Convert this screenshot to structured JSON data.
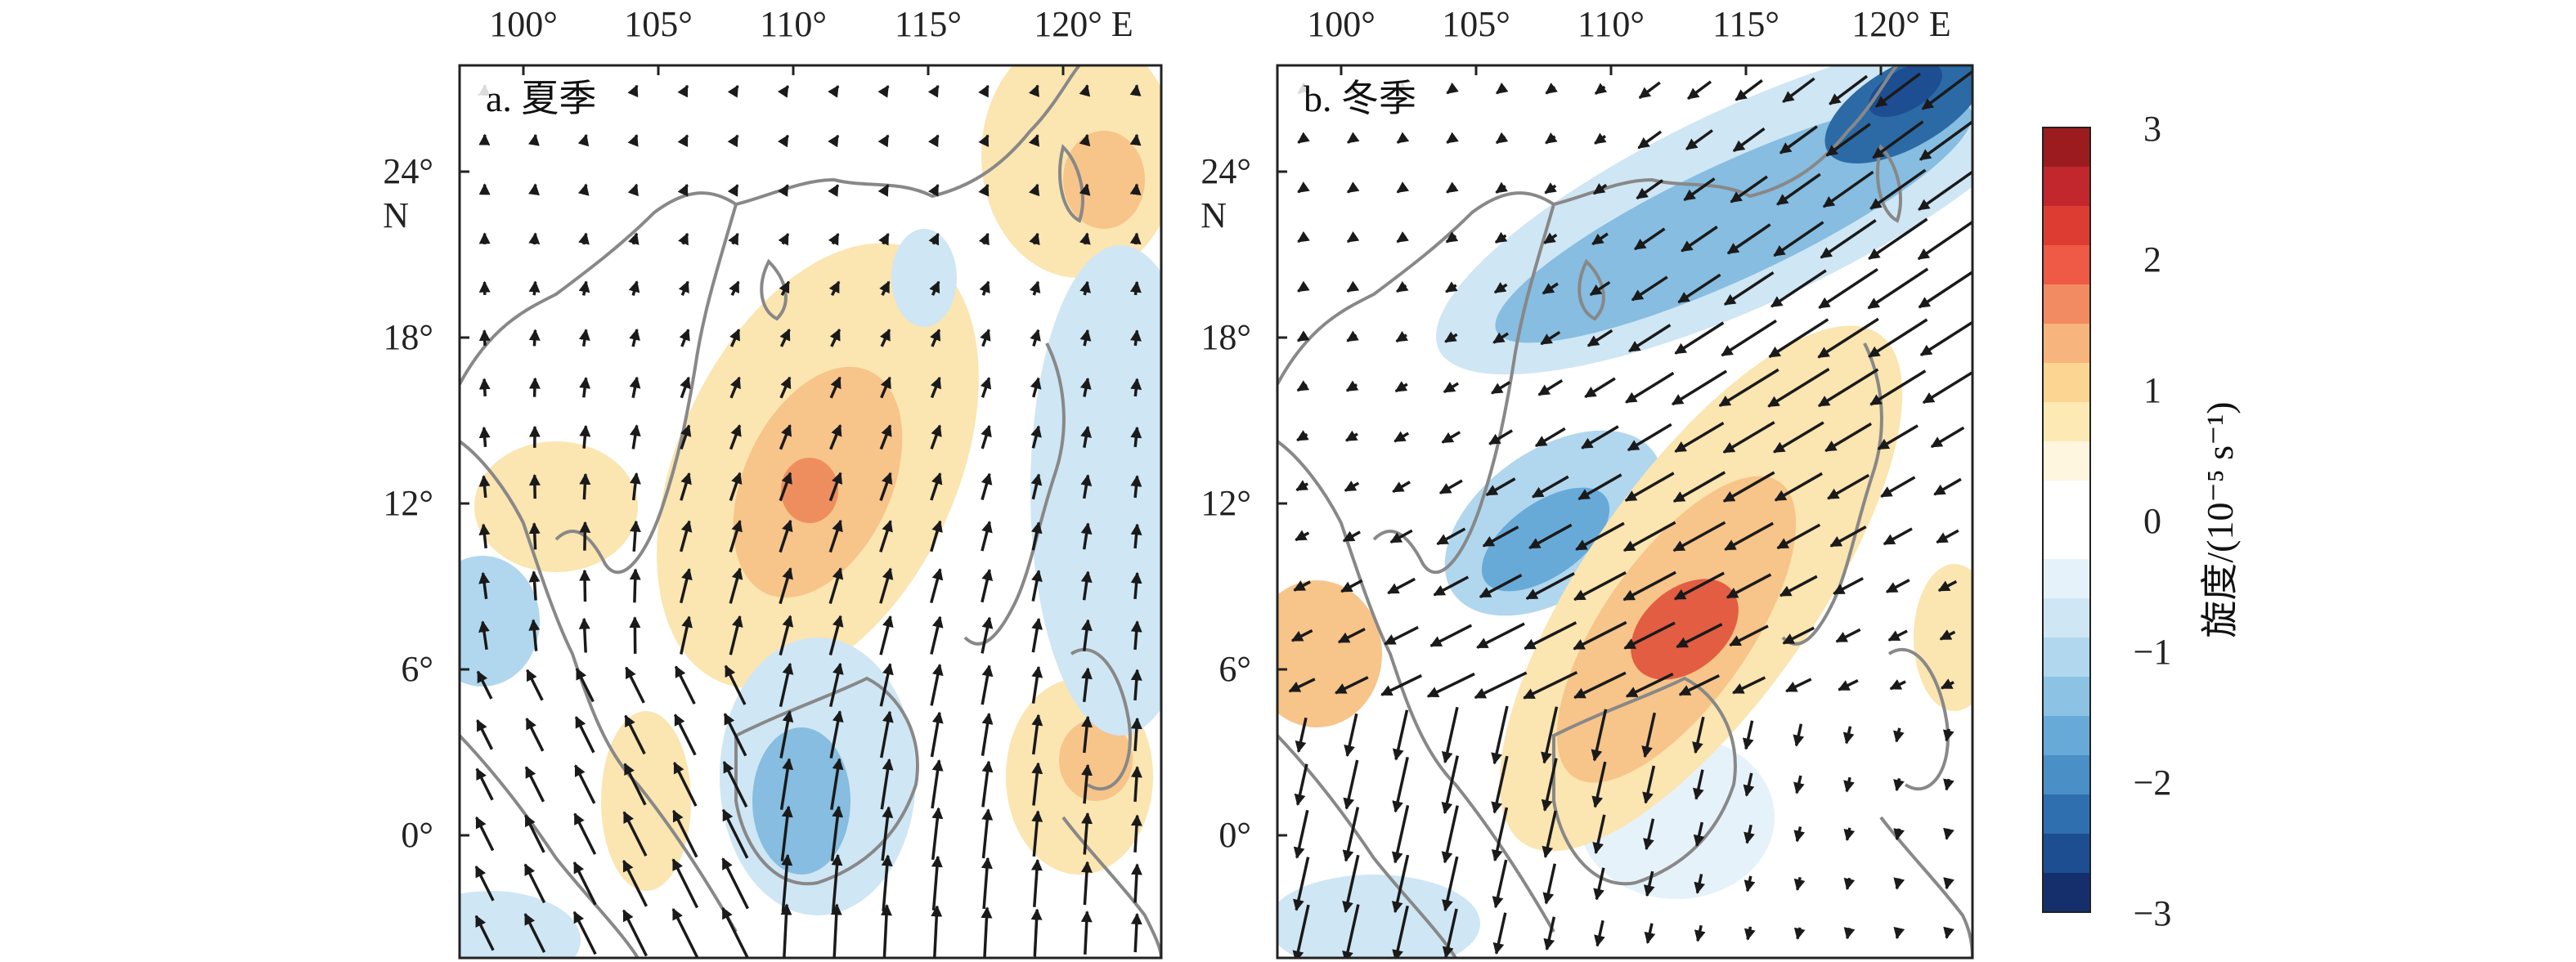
{
  "colors": {
    "strong_pos": "#c83a2a",
    "mid_pos": "#ee8e5e",
    "weak_pos": "#f9dfa7",
    "weak_neg": "#cfe6f4",
    "mid_neg": "#86bde0",
    "strong_neg": "#2c6aa6",
    "coast": "#888888",
    "arrow": "#1a1a1a"
  },
  "panels": [
    {
      "label": "a. 夏季",
      "x_ticks": [
        "100°",
        "105°",
        "110°",
        "115°",
        "120° E"
      ],
      "y_ticks": [
        "24°",
        "18°",
        "12°",
        "6°",
        "0°"
      ],
      "y_unit": "N",
      "wind_u": 0.05,
      "wind_v": 1.0
    },
    {
      "label": "b. 冬季",
      "x_ticks": [
        "100°",
        "105°",
        "110°",
        "115°",
        "120° E"
      ],
      "y_ticks": [
        "24°",
        "18°",
        "12°",
        "6°",
        "0°"
      ],
      "y_unit": "N",
      "wind_u": -0.8,
      "wind_v": -0.6
    }
  ],
  "colorbar": {
    "ticks": [
      "3",
      "2",
      "1",
      "0",
      "−1",
      "−2",
      "−3"
    ],
    "label": "旋度/(10⁻⁵ s⁻¹)",
    "levels": [
      "#9b1b1e",
      "#c1272d",
      "#dd3c32",
      "#ee5a45",
      "#f28b61",
      "#f7b47d",
      "#fcd592",
      "#fde9b4",
      "#fef6de",
      "#ffffff",
      "#ffffff",
      "#e6f2fa",
      "#cfe6f4",
      "#b0d7ee",
      "#8cc3e5",
      "#68aad7",
      "#4a8fc6",
      "#2f6fb0",
      "#1e4e92",
      "#142f6b"
    ]
  }
}
